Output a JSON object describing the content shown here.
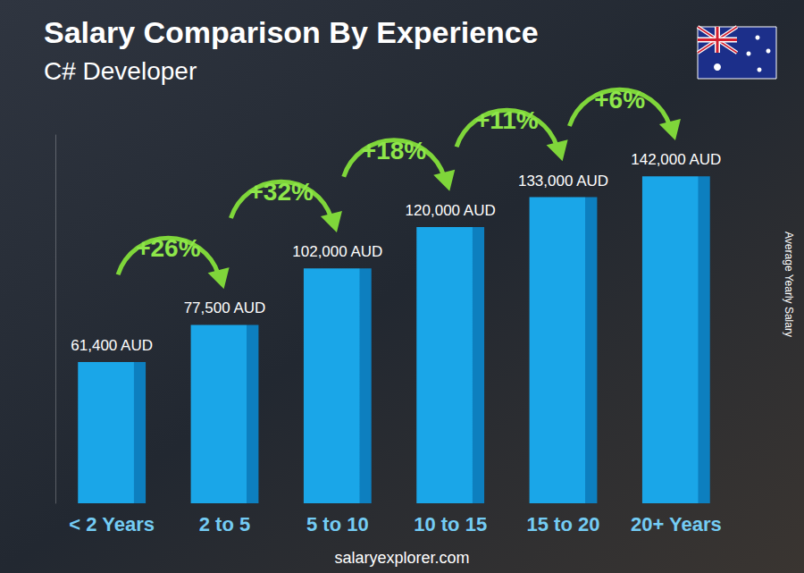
{
  "chart_data": {
    "type": "bar",
    "title": "Salary Comparison By Experience",
    "subtitle": "C# Developer",
    "y_label": "Average Yearly Salary",
    "source": "salaryexplorer.com",
    "categories": [
      "< 2 Years",
      "2 to 5",
      "5 to 10",
      "10 to 15",
      "15 to 20",
      "20+ Years"
    ],
    "values": [
      61400,
      77500,
      102000,
      120000,
      133000,
      142000
    ],
    "value_labels": [
      "61,400 AUD",
      "77,500 AUD",
      "102,000 AUD",
      "120,000 AUD",
      "133,000 AUD",
      "142,000 AUD"
    ],
    "annotations": [
      "+26%",
      "+32%",
      "+18%",
      "+11%",
      "+6%"
    ],
    "color": "#1aa6e8",
    "ylim": [
      0,
      160000
    ],
    "yticks": [],
    "grid": false,
    "data_labels": true,
    "tick_labels": "x"
  }
}
